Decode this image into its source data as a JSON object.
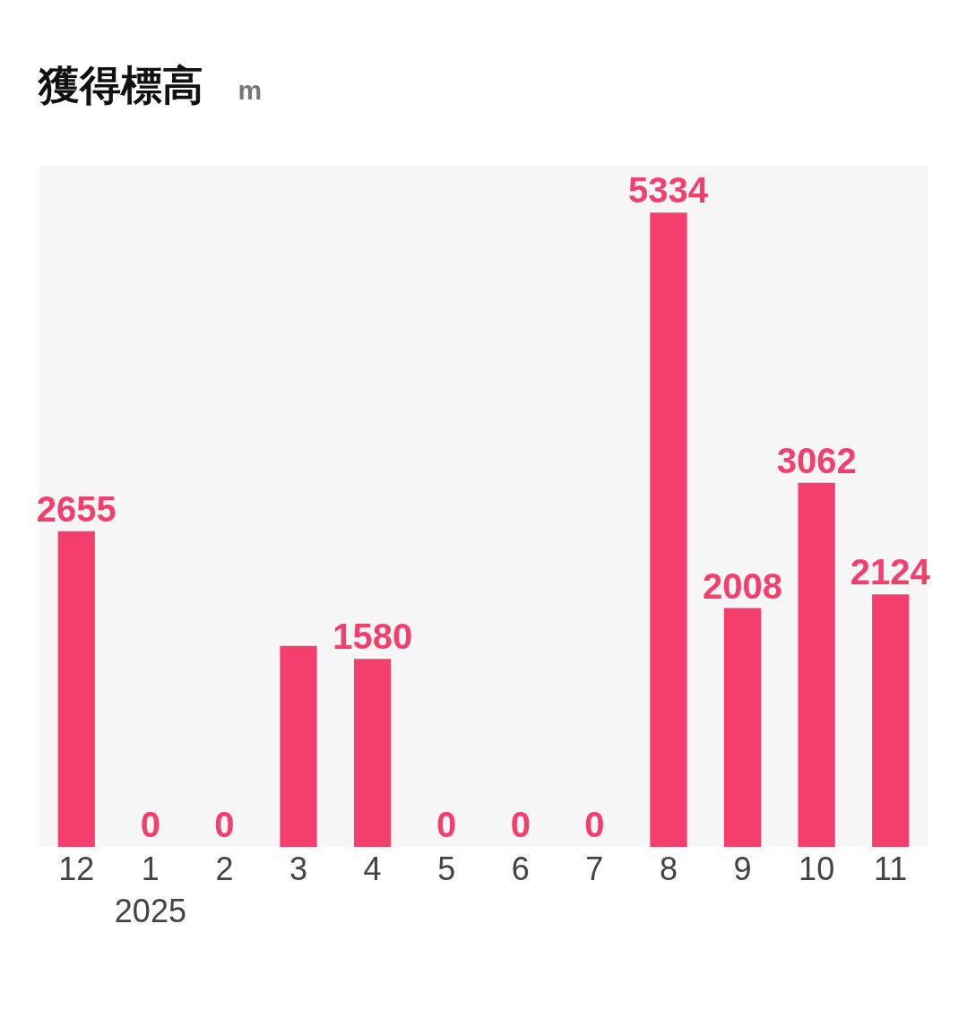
{
  "chart_data": {
    "type": "bar",
    "title": "獲得標高",
    "subtitle": "m",
    "categories": [
      "12",
      "1\n2025",
      "2",
      "3",
      "4",
      "5",
      "6",
      "7",
      "8",
      "9",
      "10",
      "11"
    ],
    "values": [
      2655,
      0,
      0,
      1690,
      1580,
      0,
      0,
      0,
      5334,
      2008,
      3062,
      2124
    ],
    "value_labels": [
      "2655",
      "0",
      "0",
      null,
      "1580",
      "0",
      "0",
      "0",
      "5334",
      "2008",
      "3062",
      "2124"
    ],
    "color": "#f43f6e"
  }
}
